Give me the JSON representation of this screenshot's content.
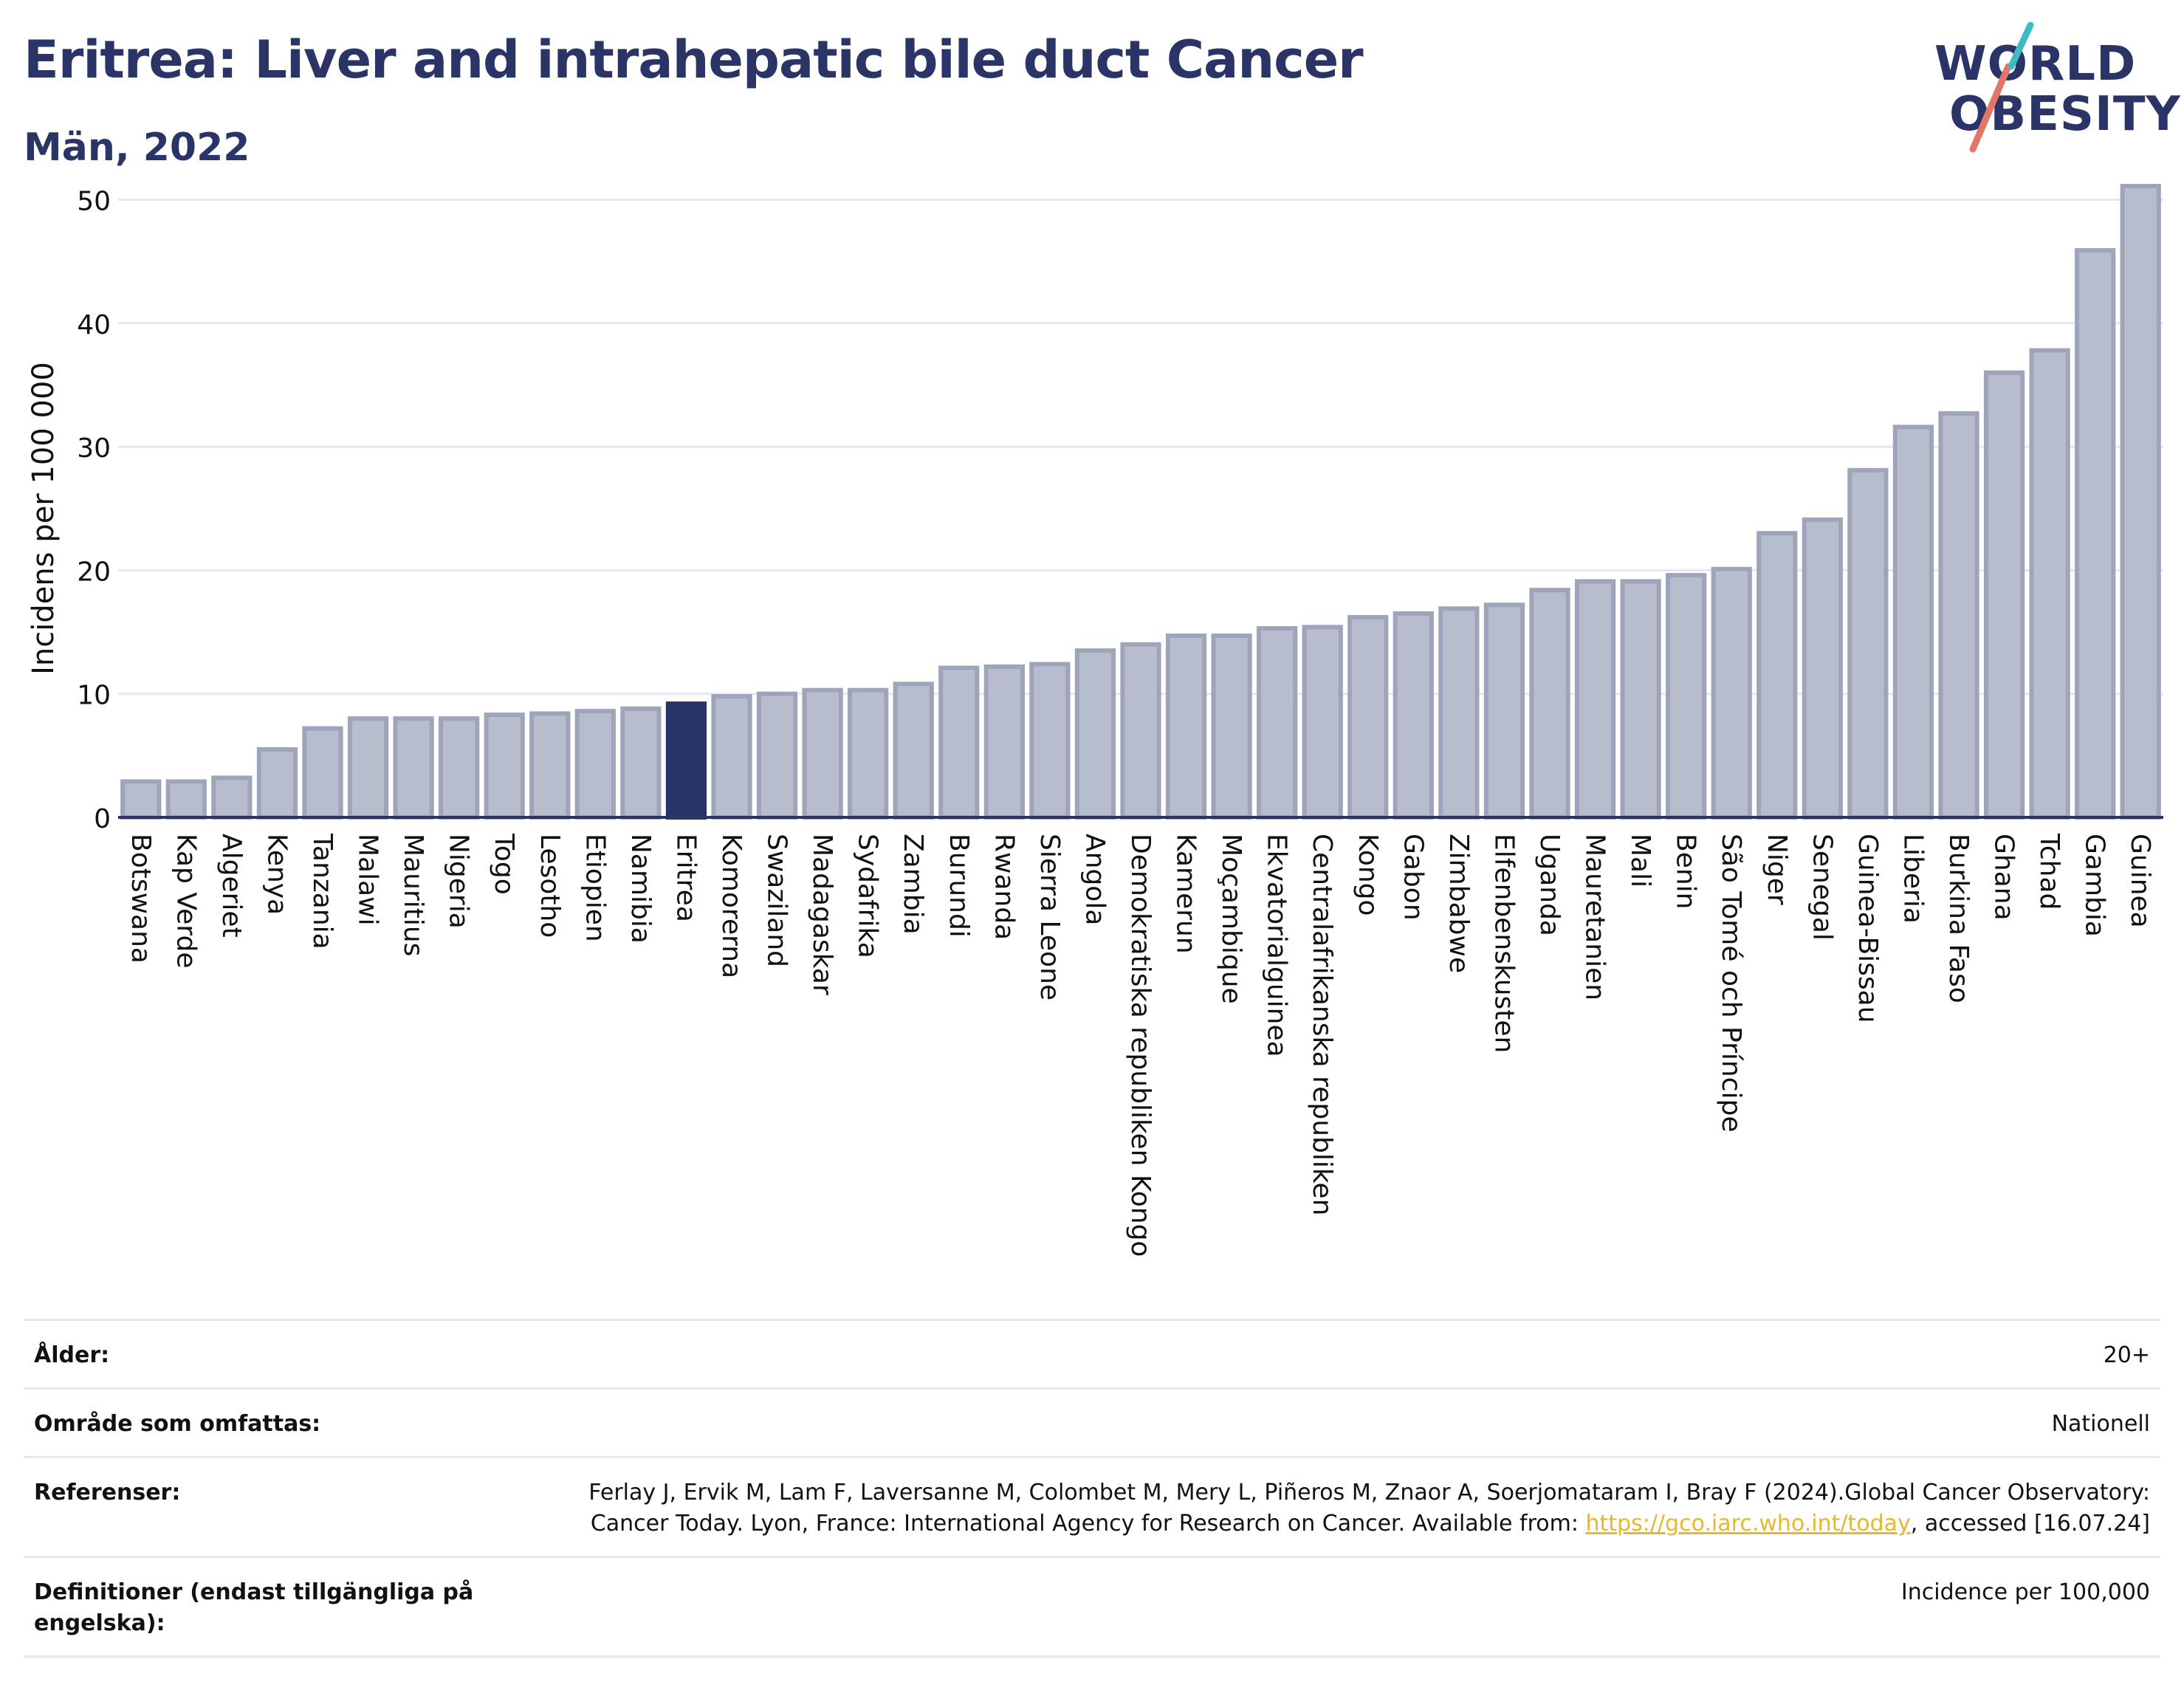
{
  "header": {
    "title": "Eritrea: Liver and intrahepatic bile duct Cancer",
    "subtitle": "Män, 2022"
  },
  "logo": {
    "line1": "WORLD",
    "line2": "OBESITY"
  },
  "colors": {
    "bar": "#b8bdcd",
    "bar_stroke": "#9ea4ba",
    "highlight": "#2b3467",
    "axis": "#2b3467",
    "grid": "#e6e8ee",
    "link": "#e8b730"
  },
  "chart_data": {
    "type": "bar",
    "ylabel": "Incidens per 100 000",
    "xlabel": "",
    "ylim": [
      0,
      52
    ],
    "yticks": [
      0,
      10,
      20,
      30,
      40,
      50
    ],
    "highlight": "Eritrea",
    "categories": [
      "Botswana",
      "Kap Verde",
      "Algeriet",
      "Kenya",
      "Tanzania",
      "Malawi",
      "Mauritius",
      "Nigeria",
      "Togo",
      "Lesotho",
      "Etiopien",
      "Namibia",
      "Eritrea",
      "Komorerna",
      "Swaziland",
      "Madagaskar",
      "Sydafrika",
      "Zambia",
      "Burundi",
      "Rwanda",
      "Sierra Leone",
      "Angola",
      "Demokratiska republiken Kongo",
      "Kamerun",
      "Moçambique",
      "Ekvatorialguinea",
      "Centralafrikanska republiken",
      "Kongo",
      "Gabon",
      "Zimbabwe",
      "Elfenbenskusten",
      "Uganda",
      "Mauretanien",
      "Mali",
      "Benin",
      "São Tomé och Príncipe",
      "Niger",
      "Senegal",
      "Guinea-Bissau",
      "Liberia",
      "Burkina Faso",
      "Ghana",
      "Tchad",
      "Gambia",
      "Guinea"
    ],
    "values": [
      2.9,
      2.9,
      3.2,
      5.5,
      7.2,
      8.0,
      8.0,
      8.0,
      8.3,
      8.4,
      8.6,
      8.8,
      9.2,
      9.8,
      10.0,
      10.3,
      10.3,
      10.8,
      12.1,
      12.2,
      12.4,
      13.5,
      14.0,
      14.7,
      14.7,
      15.3,
      15.4,
      16.2,
      16.5,
      16.9,
      17.2,
      18.4,
      19.1,
      19.1,
      19.6,
      20.1,
      23.0,
      24.1,
      28.1,
      31.6,
      32.7,
      36.0,
      37.8,
      45.9,
      51.1
    ]
  },
  "meta": [
    {
      "label": "Ålder:",
      "value": "20+"
    },
    {
      "label": "Område som omfattas:",
      "value": "Nationell"
    },
    {
      "label": "Referenser:",
      "value_before": "Ferlay J, Ervik M, Lam F, Laversanne M, Colombet M, Mery L, Piñeros M, Znaor A, Soerjomataram I, Bray F (2024).Global Cancer Observatory: Cancer Today. Lyon, France: International Agency for Research on Cancer. Available from: ",
      "link": "https://gco.iarc.who.int/today",
      "value_after": ", accessed [16.07.24]"
    },
    {
      "label": "Definitioner (endast tillgängliga på engelska):",
      "value": "Incidence per 100,000"
    }
  ]
}
